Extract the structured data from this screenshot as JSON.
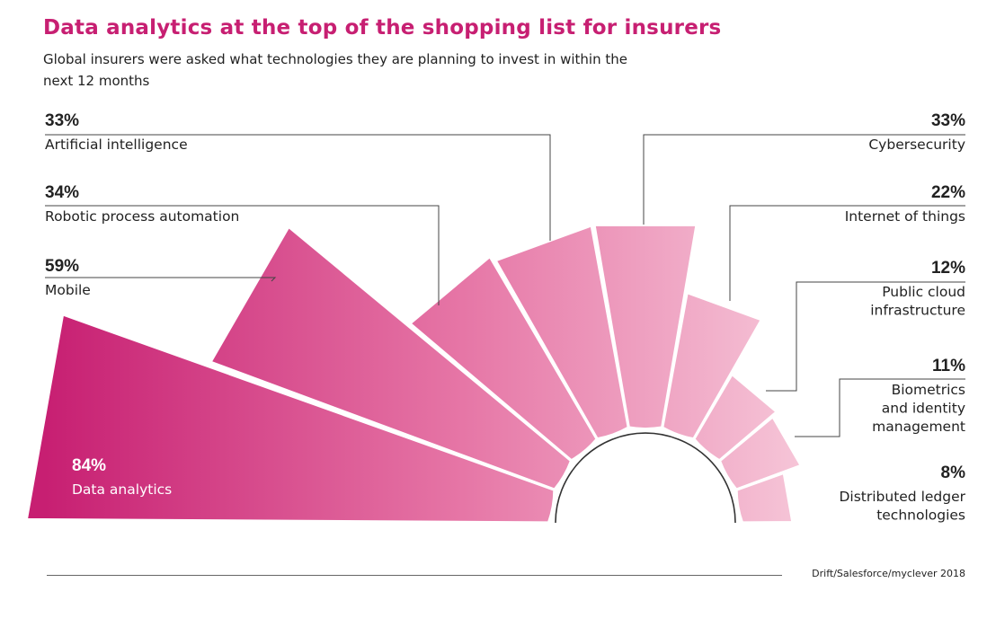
{
  "title": "Data analytics at the top of the shopping list for insurers",
  "subtitle": "Global insurers were asked what technologies they are planning to invest in within the next 12 months",
  "source": "Drift/Salesforce/myclever 2018",
  "colors": {
    "title": "#c71f72",
    "dark": "#c71f72",
    "light": "#f6c6d8"
  },
  "chart_data": {
    "type": "radial-bar",
    "unit": "%",
    "categories": [
      "Data analytics",
      "Mobile",
      "Robotic process automation",
      "Artificial intelligence",
      "Cybersecurity",
      "Internet of things",
      "Public cloud infrastructure",
      "Biometrics and identity management",
      "Distributed ledger technologies"
    ],
    "values": [
      84,
      59,
      34,
      33,
      33,
      22,
      12,
      11,
      8
    ],
    "labels": [
      {
        "pct": "84%",
        "lines": [
          "Data analytics"
        ]
      },
      {
        "pct": "59%",
        "lines": [
          "Mobile"
        ]
      },
      {
        "pct": "34%",
        "lines": [
          "Robotic process automation"
        ]
      },
      {
        "pct": "33%",
        "lines": [
          "Artificial intelligence"
        ]
      },
      {
        "pct": "33%",
        "lines": [
          "Cybersecurity"
        ]
      },
      {
        "pct": "22%",
        "lines": [
          "Internet of things"
        ]
      },
      {
        "pct": "12%",
        "lines": [
          "Public cloud",
          "infrastructure"
        ]
      },
      {
        "pct": "11%",
        "lines": [
          "Biometrics",
          "and identity",
          "management"
        ]
      },
      {
        "pct": "8%",
        "lines": [
          "Distributed ledger",
          "technologies"
        ]
      }
    ]
  }
}
